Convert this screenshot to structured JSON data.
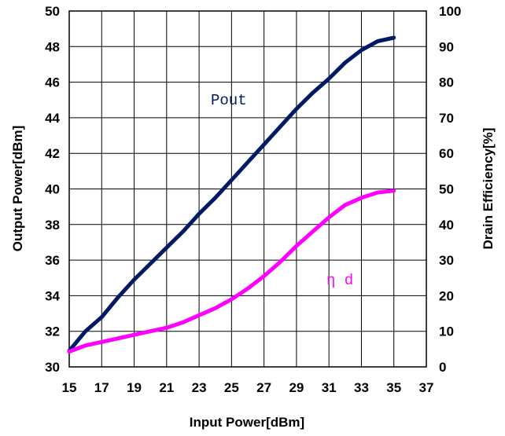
{
  "chart_data": {
    "type": "line",
    "xlabel": "Input Power[dBm]",
    "ylabel_left": "Output Power[dBm]",
    "ylabel_right": "Drain Efficiency[%]",
    "xlim": [
      15,
      37
    ],
    "ylim_left": [
      30,
      50
    ],
    "ylim_right": [
      0,
      100
    ],
    "x_ticks": [
      15,
      17,
      19,
      21,
      23,
      25,
      27,
      29,
      31,
      33,
      35,
      37
    ],
    "y_ticks_left": [
      30,
      32,
      34,
      36,
      38,
      40,
      42,
      44,
      46,
      48,
      50
    ],
    "y_ticks_right": [
      0,
      10,
      20,
      30,
      40,
      50,
      60,
      70,
      80,
      90,
      100
    ],
    "grid": true,
    "series": [
      {
        "name": "Pout",
        "axis": "left",
        "color": "#001a66",
        "x": [
          15,
          16,
          17,
          18,
          19,
          20,
          21,
          22,
          23,
          24,
          25,
          26,
          27,
          28,
          29,
          30,
          31,
          32,
          33,
          34,
          35
        ],
        "values": [
          30.9,
          32.0,
          32.8,
          33.9,
          34.9,
          35.8,
          36.7,
          37.6,
          38.6,
          39.5,
          40.5,
          41.5,
          42.5,
          43.5,
          44.5,
          45.4,
          46.2,
          47.1,
          47.8,
          48.3,
          48.5
        ]
      },
      {
        "name": "η d",
        "axis": "right",
        "color": "#ff00ff",
        "x": [
          15,
          16,
          17,
          18,
          19,
          20,
          21,
          22,
          23,
          24,
          25,
          26,
          27,
          28,
          29,
          30,
          31,
          32,
          33,
          34,
          35
        ],
        "values": [
          4.3,
          6.0,
          7.0,
          8.0,
          9.0,
          10.0,
          11.0,
          12.5,
          14.5,
          16.5,
          19.0,
          22.0,
          25.5,
          29.5,
          34.0,
          38.0,
          42.0,
          45.5,
          47.5,
          49.0,
          49.5
        ]
      }
    ],
    "annotations": [
      {
        "text": "Pout",
        "series": 0,
        "color": "#001a66"
      },
      {
        "text": "η d",
        "series": 1,
        "color": "#ff00ff"
      }
    ]
  }
}
